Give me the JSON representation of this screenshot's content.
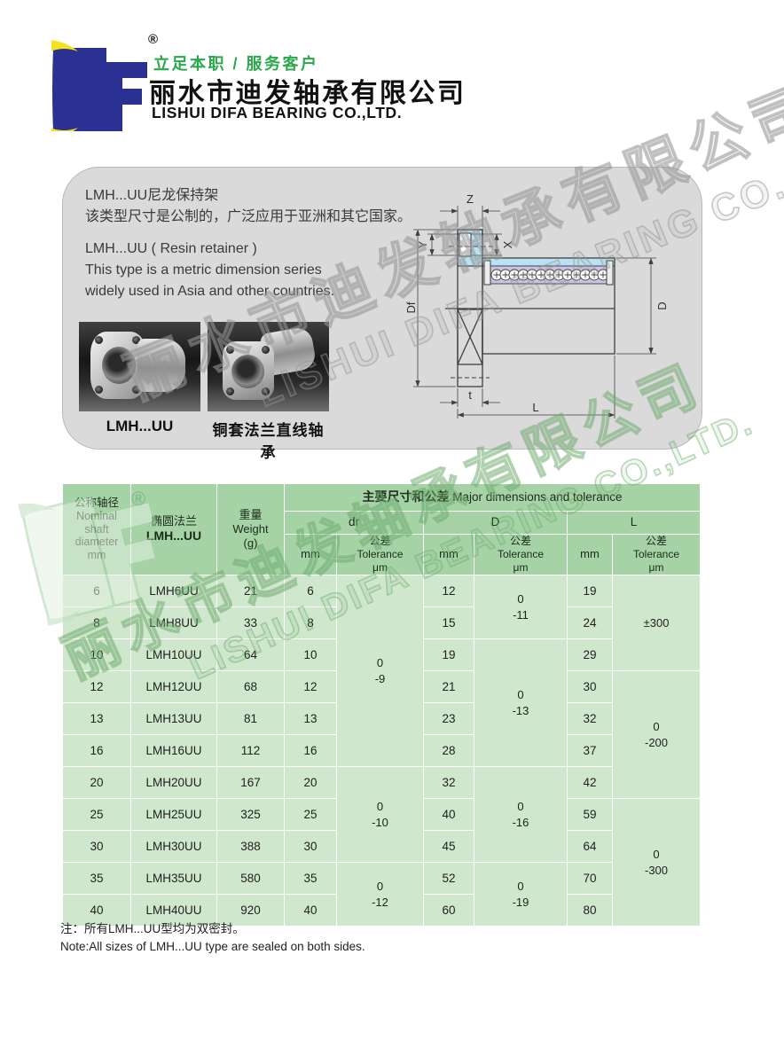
{
  "brand": {
    "reg": "®",
    "slogan": "立足本职 / 服务客户",
    "company_cn": "丽水市迪发轴承有限公司",
    "company_en": "LISHUI DIFA BEARING CO.,LTD."
  },
  "intro": {
    "cn1": "LMH...UU尼龙保持架",
    "cn2": "该类型尺寸是公制的，广泛应用于亚洲和其它国家。",
    "en1": "LMH...UU ( Resin retainer )",
    "en2": "This type is a metric dimension series",
    "en3": "widely used in Asia and other countries."
  },
  "photos": {
    "caption1": "LMH...UU",
    "caption2": "铜套法兰直线轴承"
  },
  "diagram": {
    "labels": {
      "z": "Z",
      "y": "Y",
      "x": "X",
      "df": "Df",
      "d": "D",
      "t": "t",
      "l": "L"
    }
  },
  "table": {
    "header": {
      "col1_lines": [
        "公称轴径",
        "Nominal",
        "shaft",
        "diameter",
        "mm"
      ],
      "col2_lines": [
        "椭圆法兰",
        "LMH...UU"
      ],
      "col3_lines": [
        "重量",
        "Weight",
        "(g)"
      ],
      "band_cn": "主要尺寸和公差",
      "band_en": "Major dimensions and tolerance",
      "groups": [
        "dr",
        "D",
        "L"
      ],
      "mm_label": "mm",
      "tol_lines": [
        "公差",
        "Tolerance",
        "μm"
      ]
    },
    "rows": [
      {
        "shaft": "6",
        "model": "LMH6UU",
        "weight": "21",
        "dr": "6",
        "D": "12",
        "L": "19"
      },
      {
        "shaft": "8",
        "model": "LMH8UU",
        "weight": "33",
        "dr": "8",
        "D": "15",
        "L": "24"
      },
      {
        "shaft": "10",
        "model": "LMH10UU",
        "weight": "64",
        "dr": "10",
        "D": "19",
        "L": "29"
      },
      {
        "shaft": "12",
        "model": "LMH12UU",
        "weight": "68",
        "dr": "12",
        "D": "21",
        "L": "30"
      },
      {
        "shaft": "13",
        "model": "LMH13UU",
        "weight": "81",
        "dr": "13",
        "D": "23",
        "L": "32"
      },
      {
        "shaft": "16",
        "model": "LMH16UU",
        "weight": "112",
        "dr": "16",
        "D": "28",
        "L": "37"
      },
      {
        "shaft": "20",
        "model": "LMH20UU",
        "weight": "167",
        "dr": "20",
        "D": "32",
        "L": "42"
      },
      {
        "shaft": "25",
        "model": "LMH25UU",
        "weight": "325",
        "dr": "25",
        "D": "40",
        "L": "59"
      },
      {
        "shaft": "30",
        "model": "LMH30UU",
        "weight": "388",
        "dr": "30",
        "D": "45",
        "L": "64"
      },
      {
        "shaft": "35",
        "model": "LMH35UU",
        "weight": "580",
        "dr": "35",
        "D": "52",
        "L": "70"
      },
      {
        "shaft": "40",
        "model": "LMH40UU",
        "weight": "920",
        "dr": "40",
        "D": "60",
        "L": "80"
      }
    ],
    "tolerance_spans": {
      "dr": [
        {
          "rows": 6,
          "lines": [
            "0",
            "-9"
          ]
        },
        {
          "rows": 3,
          "lines": [
            "0",
            "-10"
          ]
        },
        {
          "rows": 2,
          "lines": [
            "0",
            "-12"
          ]
        }
      ],
      "D": [
        {
          "rows": 2,
          "lines": [
            "0",
            "-11"
          ]
        },
        {
          "rows": 4,
          "lines": [
            "0",
            "-13"
          ]
        },
        {
          "rows": 3,
          "lines": [
            "0",
            "-16"
          ]
        },
        {
          "rows": 2,
          "lines": [
            "0",
            "-19"
          ]
        }
      ],
      "L": [
        {
          "rows": 3,
          "lines": [
            "±300"
          ]
        },
        {
          "rows": 4,
          "lines": [
            "0",
            "-200"
          ]
        },
        {
          "rows": 4,
          "lines": [
            "0",
            "-300"
          ]
        }
      ]
    }
  },
  "notes": {
    "cn": "注：所有LMH...UU型均为双密封。",
    "en": "Note:All sizes of LMH...UU type are sealed on both sides."
  },
  "watermark": {
    "cn": "丽水市迪发轴承有限公司",
    "en": "LISHUI DIFA BEARING CO.,LTD."
  },
  "colors": {
    "logo_navy": "#2b3192",
    "logo_yellow": "#f5e11c",
    "slogan_green": "#2ba84a",
    "table_header_green": "#a5d3a6",
    "table_row_green": "#cfe7cc",
    "panel_gray": "#dadada",
    "drawing_blue": "#b9e3f4",
    "drawing_lavender": "#cac2e0"
  }
}
